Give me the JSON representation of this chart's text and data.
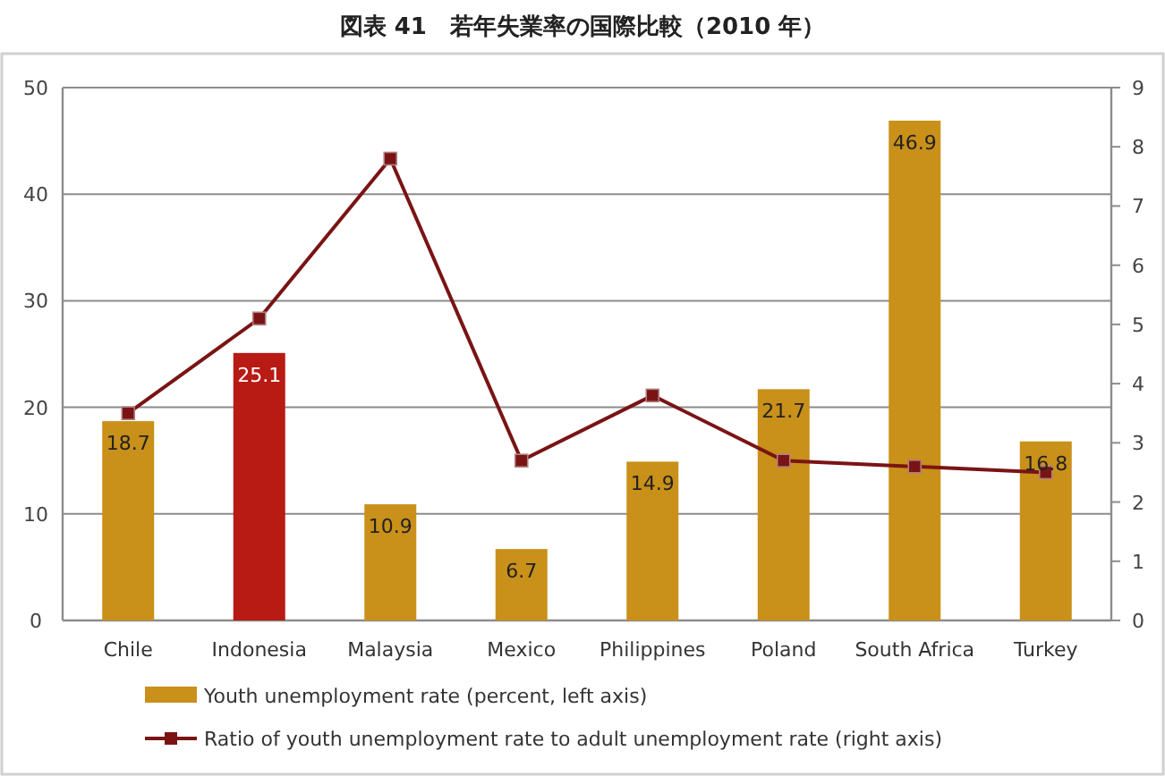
{
  "chart_data": {
    "type": "bar",
    "title": "図表 41　若年失業率の国際比較（2010 年）",
    "categories": [
      "Chile",
      "Indonesia",
      "Malaysia",
      "Mexico",
      "Philippines",
      "Poland",
      "South Africa",
      "Turkey"
    ],
    "series": [
      {
        "name": "Youth unemployment rate (percent, left axis)",
        "color": "#c9901a",
        "colors": [
          "#c9901a",
          "#b81a14",
          "#c9901a",
          "#c9901a",
          "#c9901a",
          "#c9901a",
          "#c9901a",
          "#c9901a"
        ],
        "values": [
          18.7,
          25.1,
          10.9,
          6.7,
          14.9,
          21.7,
          46.9,
          16.8
        ],
        "value_labels": [
          "18.7",
          "25.1",
          "10.9",
          "6.7",
          "14.9",
          "21.7",
          "46.9",
          "16.8"
        ]
      },
      {
        "name": "Ratio of youth unemployment rate to adult unemployment rate (right axis)",
        "type": "line",
        "axis": "y2",
        "color": "#7a1414",
        "marker": "square",
        "values": [
          3.5,
          5.1,
          7.8,
          2.7,
          3.8,
          2.7,
          2.6,
          2.5
        ]
      }
    ],
    "ylim": [
      0,
      50
    ],
    "yticks": [
      0,
      10,
      20,
      30,
      40,
      50
    ],
    "y2lim": [
      0,
      9
    ],
    "y2ticks": [
      0,
      1,
      2,
      3,
      4,
      5,
      6,
      7,
      8,
      9
    ],
    "grid": "y",
    "legend": "bottom"
  }
}
